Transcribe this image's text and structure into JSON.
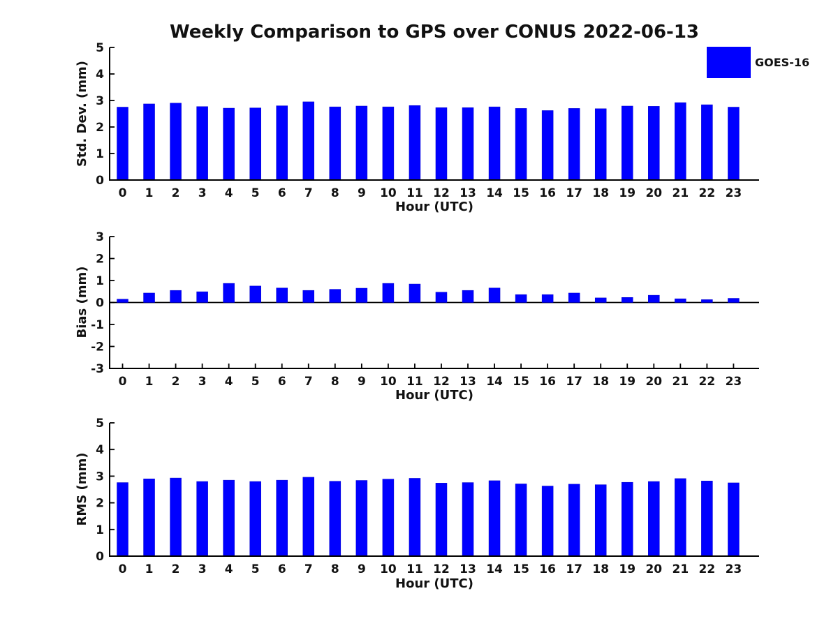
{
  "figure": {
    "title": "Weekly Comparison to GPS over CONUS 2022-06-13",
    "background": "#ffffff",
    "axis_color": "#000000",
    "legend": {
      "label": "GOES-16",
      "color": "#0000ff",
      "position": "top-right"
    }
  },
  "chart_data": [
    {
      "type": "bar",
      "title": "",
      "ylabel": "Std. Dev. (mm)",
      "xlabel": "Hour (UTC)",
      "categories": [
        "0",
        "1",
        "2",
        "3",
        "4",
        "5",
        "6",
        "7",
        "8",
        "9",
        "10",
        "11",
        "12",
        "13",
        "14",
        "15",
        "16",
        "17",
        "18",
        "19",
        "20",
        "21",
        "22",
        "23"
      ],
      "values": [
        2.75,
        2.87,
        2.9,
        2.77,
        2.71,
        2.72,
        2.8,
        2.95,
        2.76,
        2.79,
        2.76,
        2.81,
        2.73,
        2.73,
        2.76,
        2.7,
        2.62,
        2.7,
        2.69,
        2.79,
        2.78,
        2.92,
        2.84,
        2.75
      ],
      "ylim": [
        0,
        5
      ],
      "yticks": [
        0,
        1,
        2,
        3,
        4,
        5
      ],
      "grid": false,
      "bar_color": "#0000ff",
      "legend_entry": "GOES-16"
    },
    {
      "type": "bar",
      "title": "",
      "ylabel": "Bias (mm)",
      "xlabel": "Hour (UTC)",
      "categories": [
        "0",
        "1",
        "2",
        "3",
        "4",
        "5",
        "6",
        "7",
        "8",
        "9",
        "10",
        "11",
        "12",
        "13",
        "14",
        "15",
        "16",
        "17",
        "18",
        "19",
        "20",
        "21",
        "22",
        "23"
      ],
      "values": [
        0.15,
        0.43,
        0.55,
        0.49,
        0.87,
        0.75,
        0.66,
        0.55,
        0.6,
        0.65,
        0.87,
        0.84,
        0.47,
        0.55,
        0.66,
        0.36,
        0.36,
        0.43,
        0.21,
        0.23,
        0.33,
        0.17,
        0.13,
        0.19
      ],
      "ylim": [
        -3,
        3
      ],
      "yticks": [
        -3,
        -2,
        -1,
        0,
        1,
        2,
        3
      ],
      "zero_line": true,
      "grid": false,
      "bar_color": "#0000ff",
      "legend_entry": "GOES-16"
    },
    {
      "type": "bar",
      "title": "",
      "ylabel": "RMS (mm)",
      "xlabel": "Hour (UTC)",
      "categories": [
        "0",
        "1",
        "2",
        "3",
        "4",
        "5",
        "6",
        "7",
        "8",
        "9",
        "10",
        "11",
        "12",
        "13",
        "14",
        "15",
        "16",
        "17",
        "18",
        "19",
        "20",
        "21",
        "22",
        "23"
      ],
      "values": [
        2.76,
        2.9,
        2.93,
        2.8,
        2.85,
        2.8,
        2.85,
        2.96,
        2.81,
        2.84,
        2.89,
        2.92,
        2.74,
        2.76,
        2.83,
        2.71,
        2.63,
        2.7,
        2.68,
        2.77,
        2.8,
        2.91,
        2.82,
        2.75
      ],
      "ylim": [
        0,
        5
      ],
      "yticks": [
        0,
        1,
        2,
        3,
        4,
        5
      ],
      "grid": false,
      "bar_color": "#0000ff",
      "legend_entry": "GOES-16"
    }
  ]
}
